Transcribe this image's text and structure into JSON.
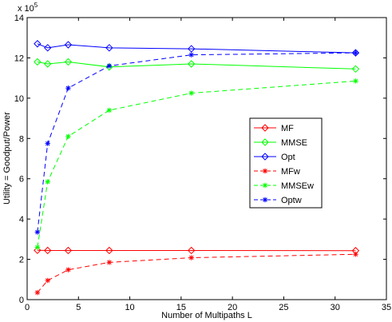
{
  "chart_data": {
    "type": "line",
    "xlabel": "Number of Multipaths L",
    "ylabel": "Utility = Goodput/Power",
    "y_multiplier": "x 10",
    "y_multiplier_exp": "5",
    "xlim": [
      0,
      35
    ],
    "ylim": [
      0,
      14
    ],
    "xticks": [
      "0",
      "5",
      "10",
      "15",
      "20",
      "25",
      "30",
      "35"
    ],
    "yticks": [
      "0",
      "2",
      "4",
      "6",
      "8",
      "10",
      "12",
      "14"
    ],
    "grid": false,
    "legend_position": "center-right",
    "x": [
      1,
      2,
      4,
      8,
      16,
      32
    ],
    "series": [
      {
        "name": "MF",
        "color": "#ff0000",
        "marker": "diamond",
        "dash": "solid",
        "values": [
          2.45,
          2.44,
          2.44,
          2.44,
          2.44,
          2.43
        ]
      },
      {
        "name": "MMSE",
        "color": "#00ff00",
        "marker": "diamond",
        "dash": "solid",
        "values": [
          11.8,
          11.7,
          11.8,
          11.55,
          11.7,
          11.45
        ]
      },
      {
        "name": "Opt",
        "color": "#0000ff",
        "marker": "diamond",
        "dash": "solid",
        "values": [
          12.7,
          12.5,
          12.65,
          12.5,
          12.45,
          12.25
        ]
      },
      {
        "name": "MFw",
        "color": "#ff0000",
        "marker": "star",
        "dash": "dashed",
        "values": [
          0.35,
          0.95,
          1.48,
          1.85,
          2.08,
          2.25
        ]
      },
      {
        "name": "MMSEw",
        "color": "#00ff00",
        "marker": "star",
        "dash": "dashed",
        "values": [
          2.6,
          5.85,
          8.1,
          9.4,
          10.25,
          10.85
        ]
      },
      {
        "name": "Optw",
        "color": "#0000ff",
        "marker": "star",
        "dash": "dashed",
        "values": [
          3.35,
          7.75,
          10.5,
          11.6,
          12.15,
          12.25
        ]
      }
    ]
  }
}
